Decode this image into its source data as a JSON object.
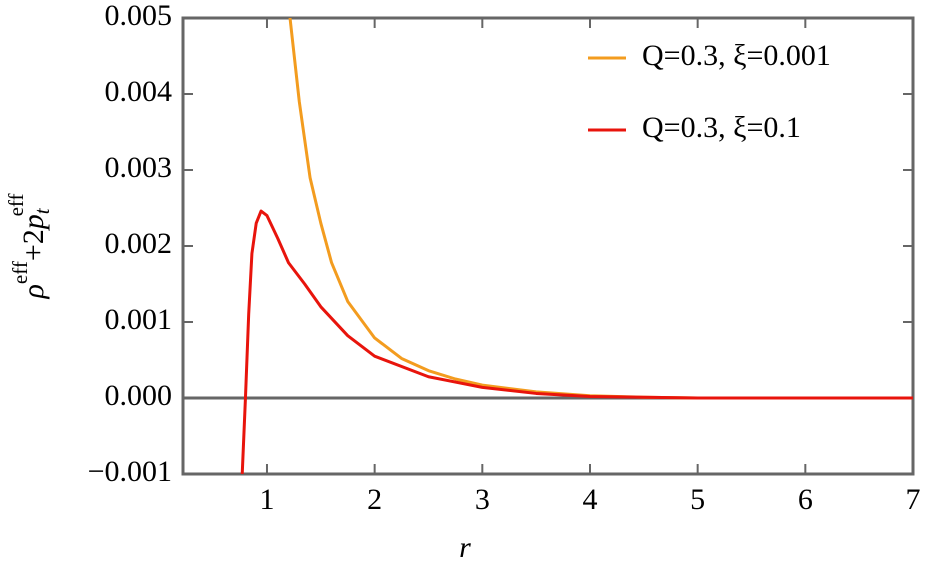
{
  "chart_data": {
    "type": "line",
    "x_label": "r",
    "y_label_parts": [
      "ρ",
      "eff",
      "+2",
      "p",
      "t",
      "eff"
    ],
    "xlim": [
      0.22,
      7
    ],
    "xticks": [
      1,
      2,
      3,
      4,
      5,
      6,
      7
    ],
    "ylim": [
      -0.001,
      0.005
    ],
    "yticks": [
      {
        "value": -0.001,
        "label": "−0.001"
      },
      {
        "value": 0,
        "label": "0.000"
      },
      0.001,
      0.002,
      0.003,
      0.004,
      0.005
    ],
    "legend": "upper right",
    "series": [
      {
        "name": "Q=0.3, ξ=0.001",
        "color": "#f39c1f",
        "x": [
          1.214,
          1.3,
          1.4,
          1.5,
          1.6,
          1.75,
          2,
          2.25,
          2.5,
          2.75,
          3,
          3.5,
          4,
          4.5,
          5,
          6,
          7
        ],
        "values": [
          0.005,
          0.0039,
          0.0029,
          0.0023,
          0.00178,
          0.00127,
          0.00079,
          0.00052,
          0.00036,
          0.00025,
          0.00017,
          8e-05,
          3e-05,
          1e-05,
          0,
          0,
          0
        ]
      },
      {
        "name": "Q=0.3, ξ=0.1",
        "color": "#e8140c",
        "x": [
          0.77,
          0.8,
          0.83,
          0.86,
          0.9,
          0.945,
          1.0,
          1.1,
          1.2,
          1.35,
          1.5,
          1.75,
          2,
          2.5,
          3,
          3.5,
          4,
          4.5,
          5,
          7
        ],
        "values": [
          -0.001,
          0,
          0.0011,
          0.0019,
          0.0023,
          0.00246,
          0.0024,
          0.0021,
          0.00178,
          0.0015,
          0.0012,
          0.00082,
          0.00055,
          0.00028,
          0.00014,
          6e-05,
          2e-05,
          1e-05,
          0,
          0
        ]
      }
    ]
  }
}
